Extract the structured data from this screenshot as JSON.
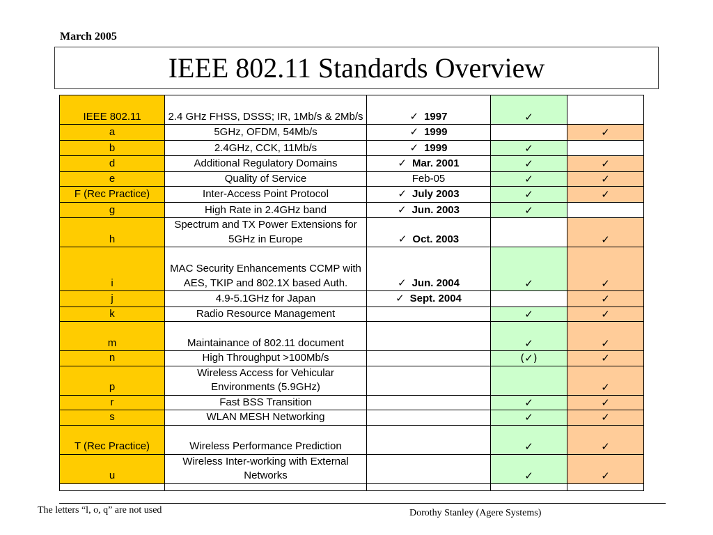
{
  "header": {
    "date": "March 2005"
  },
  "title": "IEEE 802.11 Standards Overview",
  "check": "✓",
  "rows": [
    {
      "name": "IEEE 802.11",
      "desc": "2.4 GHz FHSS, DSSS;    IR, 1Mb/s & 2Mb/s",
      "date": "1997",
      "c4": "✓",
      "c5": ""
    },
    {
      "name": "a",
      "desc": "5GHz, OFDM, 54Mb/s",
      "date": "1999",
      "c4": "",
      "c5": "✓"
    },
    {
      "name": "b",
      "desc": "2.4GHz, CCK, 11Mb/s",
      "date": "1999",
      "c4": "✓",
      "c5": ""
    },
    {
      "name": "d",
      "desc": "Additional Regulatory Domains",
      "date": "Mar.  2001",
      "c4": "✓",
      "c5": "✓"
    },
    {
      "name": "e",
      "desc": "Quality of Service",
      "date": "Feb-05",
      "c4": "✓",
      "c5": "✓"
    },
    {
      "name": "F (Rec Practice)",
      "desc": "Inter-Access Point Protocol",
      "date": "July 2003",
      "c4": "✓",
      "c5": "✓"
    },
    {
      "name": "g",
      "desc": "High Rate in 2.4GHz band",
      "date": "Jun. 2003",
      "c4": "✓",
      "c5": ""
    },
    {
      "name": "h",
      "desc": "Spectrum and TX Power Extensions for 5GHz in Europe",
      "date": "Oct. 2003",
      "c4": "",
      "c5": "✓"
    },
    {
      "name": "i",
      "desc": "MAC Security Enhancements CCMP with AES, TKIP and 802.1X based Auth.",
      "date": "Jun. 2004",
      "c4": "✓",
      "c5": "✓"
    },
    {
      "name": "j",
      "desc": "4.9-5.1GHz for Japan",
      "date": "Sept. 2004",
      "c4": "",
      "c5": "✓"
    },
    {
      "name": "k",
      "desc": "Radio Resource Management",
      "date": "",
      "c4": "✓",
      "c5": "✓"
    },
    {
      "name": "m",
      "desc": "Maintainance of 802.11 document",
      "date": "",
      "c4": "✓",
      "c5": "✓"
    },
    {
      "name": "n",
      "desc": "High Throughput >100Mb/s",
      "date": "",
      "c4": "(✓)",
      "c5": "✓"
    },
    {
      "name": "p",
      "desc": "Wireless Access for Vehicular Environments (5.9GHz)",
      "date": "",
      "c4": "",
      "c5": "✓"
    },
    {
      "name": "r",
      "desc": "Fast BSS Transition",
      "date": "",
      "c4": "✓",
      "c5": "✓"
    },
    {
      "name": "s",
      "desc": "WLAN MESH Networking",
      "date": "",
      "c4": "✓",
      "c5": "✓"
    },
    {
      "name": "T (Rec Practice)",
      "desc": "Wireless Performance Prediction",
      "date": "",
      "c4": "✓",
      "c5": "✓"
    },
    {
      "name": "u",
      "desc": "Wireless Inter-working with External Networks",
      "date": "",
      "c4": "✓",
      "c5": "✓"
    }
  ],
  "footer": {
    "note": "The letters “l, o, q” are not used",
    "author": "Dorothy Stanley (Agere Systems)"
  }
}
